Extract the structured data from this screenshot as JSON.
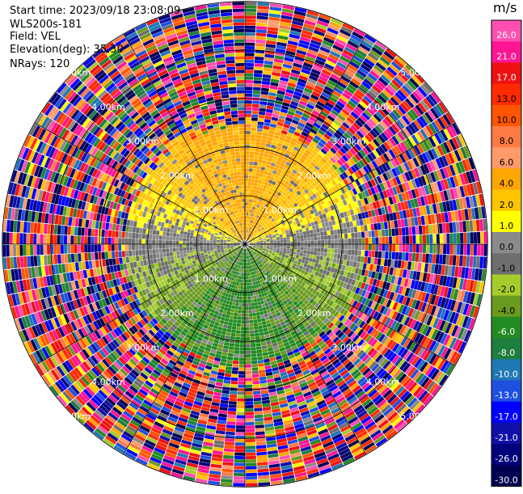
{
  "header": {
    "start_time": "Start time: 2023/09/18 23:08:09",
    "instrument": "WLS200s-181",
    "field": "Field: VEL",
    "elevation": "Elevation(deg): 35.30",
    "nrays": "NRays: 120"
  },
  "colorbar": {
    "unit": "m/s",
    "ticks": [
      "26.0",
      "21.0",
      "17.0",
      "13.0",
      "10.0",
      "8.0",
      "6.0",
      "4.0",
      "2.0",
      "1.0",
      "0.0",
      "-1.0",
      "-2.0",
      "-4.0",
      "-6.0",
      "-8.0",
      "-10.0",
      "-13.0",
      "-17.0",
      "-21.0",
      "-26.0",
      "-30.0"
    ],
    "colors": [
      "#ff4fb0",
      "#ff1493",
      "#ee1111",
      "#ff2a00",
      "#ff5500",
      "#ff7a45",
      "#ff9a6a",
      "#ffa500",
      "#ffc400",
      "#ffff00",
      "#8a8a8a",
      "#6e6e6e",
      "#a4cc2c",
      "#6a9a1e",
      "#228b22",
      "#1e7e3e",
      "#1f78b4",
      "#1e50e0",
      "#0000ff",
      "#1010a8",
      "#00007a",
      "#000050"
    ]
  },
  "chart_data": {
    "type": "ppi",
    "field": "VEL",
    "units": "m/s",
    "nrays": 120,
    "elevation_deg": 35.3,
    "range_rings_km": [
      1.0,
      2.0,
      3.0,
      4.0,
      5.0
    ],
    "range_ring_labels": [
      "1.00km",
      "2.00km",
      "3.00km",
      "4.00km",
      "5.00km"
    ],
    "spoke_angles_deg": [
      0,
      30,
      60,
      90,
      120,
      150,
      180,
      210,
      240,
      270,
      300,
      330
    ],
    "max_range_km": 7.2,
    "pattern": {
      "north_half_velocity": "positive 1-6 m/s (yellow/orange)",
      "south_half_velocity": "negative -2 to -8 m/s (green)",
      "near_zero_at_east_west": true,
      "noise_beyond_km": 3.4
    },
    "colorbar_levels": [
      26.0,
      21.0,
      17.0,
      13.0,
      10.0,
      8.0,
      6.0,
      4.0,
      2.0,
      1.0,
      0.0,
      -1.0,
      -2.0,
      -4.0,
      -6.0,
      -8.0,
      -10.0,
      -13.0,
      -17.0,
      -21.0,
      -26.0,
      -30.0
    ]
  }
}
